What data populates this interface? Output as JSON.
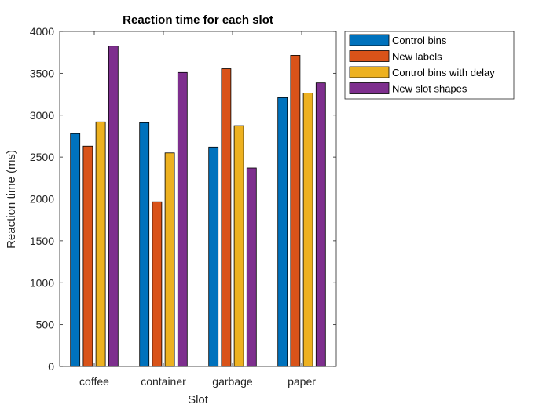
{
  "chart_data": {
    "type": "bar",
    "title": "Reaction time for each slot",
    "xlabel": "Slot",
    "ylabel": "Reaction time (ms)",
    "ylim": [
      0,
      4000
    ],
    "yticks": [
      "0",
      "500",
      "1000",
      "1500",
      "2000",
      "2500",
      "3000",
      "3500",
      "4000"
    ],
    "categories": [
      "coffee",
      "container",
      "garbage",
      "paper"
    ],
    "series": [
      {
        "name": "Control bins",
        "color": "#0072BD",
        "values": [
          2780,
          2910,
          2620,
          3210
        ]
      },
      {
        "name": "New labels",
        "color": "#D95319",
        "values": [
          2630,
          1965,
          3555,
          3715
        ]
      },
      {
        "name": "Control bins with delay",
        "color": "#EDB120",
        "values": [
          2920,
          2550,
          2875,
          3265
        ]
      },
      {
        "name": "New slot shapes",
        "color": "#7E2F8E",
        "values": [
          3825,
          3510,
          2370,
          3385
        ]
      }
    ],
    "grid": false,
    "legend_position": "outside top-right"
  }
}
